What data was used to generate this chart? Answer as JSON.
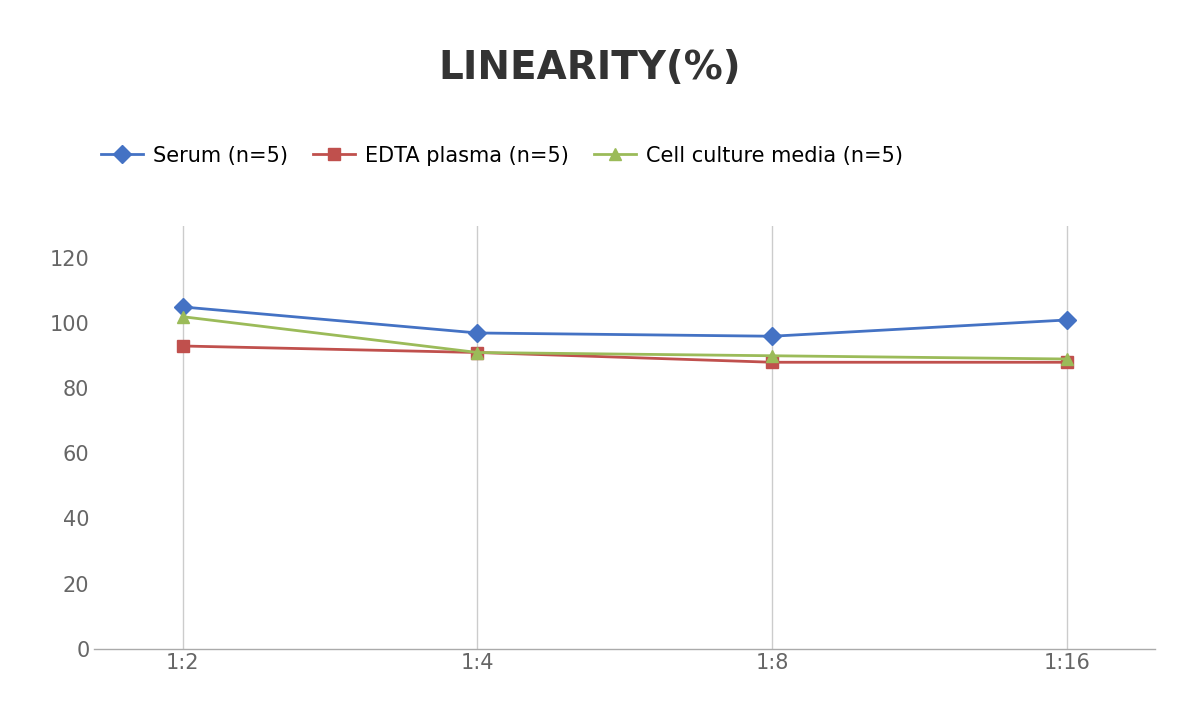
{
  "title": "LINEARITY(%)",
  "title_fontsize": 28,
  "title_fontweight": "bold",
  "x_labels": [
    "1:2",
    "1:4",
    "1:8",
    "1:16"
  ],
  "x_values": [
    0,
    1,
    2,
    3
  ],
  "series": [
    {
      "label": "Serum (n=5)",
      "values": [
        105,
        97,
        96,
        101
      ],
      "color": "#4472C4",
      "marker": "D",
      "markersize": 9,
      "linewidth": 2
    },
    {
      "label": "EDTA plasma (n=5)",
      "values": [
        93,
        91,
        88,
        88
      ],
      "color": "#C0504D",
      "marker": "s",
      "markersize": 9,
      "linewidth": 2
    },
    {
      "label": "Cell culture media (n=5)",
      "values": [
        102,
        91,
        90,
        89
      ],
      "color": "#9BBB59",
      "marker": "^",
      "markersize": 9,
      "linewidth": 2
    }
  ],
  "ylim": [
    0,
    130
  ],
  "yticks": [
    0,
    20,
    40,
    60,
    80,
    100,
    120
  ],
  "background_color": "#ffffff",
  "grid_color": "#cccccc",
  "legend_fontsize": 15,
  "tick_fontsize": 15,
  "tick_color": "#666666"
}
